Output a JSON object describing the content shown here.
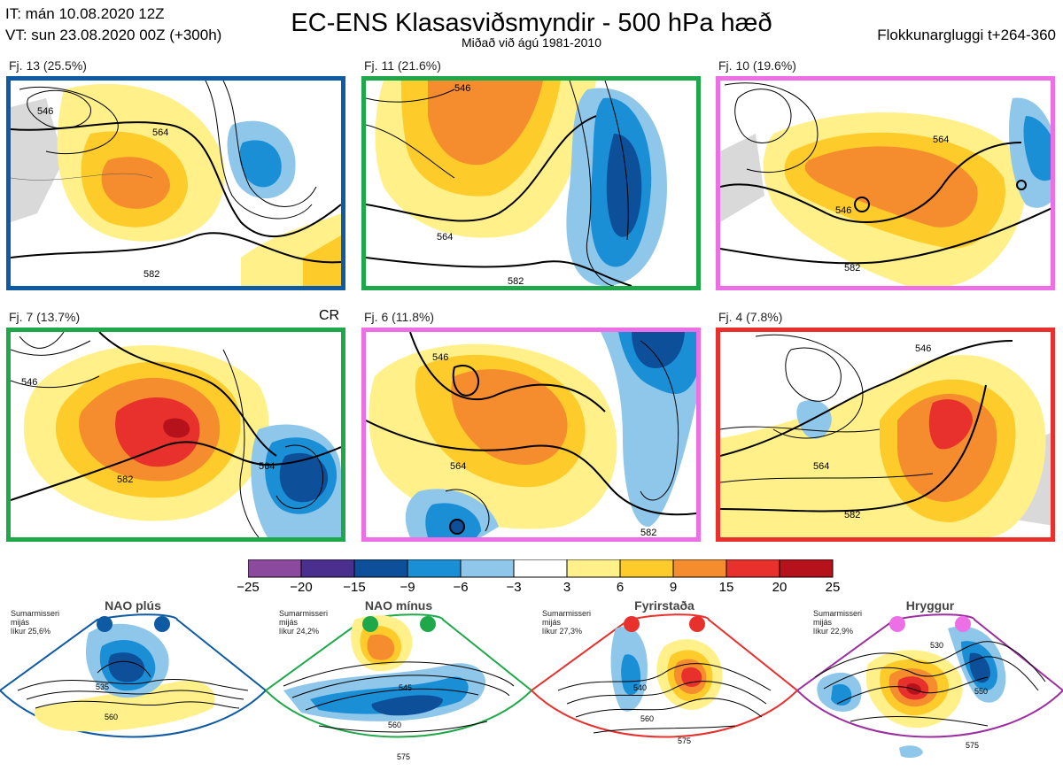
{
  "header": {
    "it": "IT: mán 10.08.2020 12Z",
    "vt": "VT: sun 23.08.2020 00Z  (+300h)",
    "title": "EC-ENS Klasasviðsmyndir - 500 hPa hæð",
    "subtitle": "Miðað við ágú 1981-2010",
    "window": "Flokkunargluggi t+264-360"
  },
  "panels": [
    {
      "label": "Fj. 13 (25.5%)",
      "color": "#0e5aa3",
      "c1": "546",
      "c2": "564",
      "c3": "582"
    },
    {
      "label": "Fj. 11 (21.6%)",
      "color": "#1fa84a",
      "c1": "546",
      "c2": "564",
      "c3": "582"
    },
    {
      "label": "Fj. 10 (19.6%)",
      "color": "#ec6fe6",
      "c1": "546",
      "c2": "564",
      "c3": "582"
    },
    {
      "label": "Fj. 7 (13.7%)",
      "color": "#1fa84a",
      "c1": "546",
      "c2": "564",
      "c3": "582"
    },
    {
      "label": "Fj. 6 (11.8%)",
      "color": "#ec6fe6",
      "c1": "546",
      "c2": "564",
      "c3": "582"
    },
    {
      "label": "Fj. 4 (7.8%)",
      "color": "#e8302c",
      "c1": "546",
      "c2": "564",
      "c3": "582"
    }
  ],
  "cr_label": "CR",
  "colorbar": {
    "labels": [
      "−25",
      "−20",
      "−15",
      "−9",
      "−6",
      "−3",
      "3",
      "6",
      "9",
      "15",
      "20",
      "25"
    ],
    "colors": [
      "#8b4a9e",
      "#4b2f8f",
      "#0e4f9a",
      "#1a8fd6",
      "#8fc7ea",
      "#ffffff",
      "#fff08a",
      "#fdcc2a",
      "#f58c2e",
      "#e8302c",
      "#b5121b"
    ]
  },
  "regimes": [
    {
      "name": "NAO plús",
      "info": [
        "Sumarmisseri",
        "mijás",
        "líkur 25,6%"
      ],
      "color": "#0e5aa3",
      "c1": "535",
      "c2": "560"
    },
    {
      "name": "NAO mínus",
      "info": [
        "Sumarmisseri",
        "mijás",
        "líkur 24,2%"
      ],
      "color": "#1fa84a",
      "c1": "545",
      "c2": "560",
      "c3": "575"
    },
    {
      "name": "Fyrirstaða",
      "info": [
        "Sumarmisseri",
        "mijás",
        "líkur 27,3%"
      ],
      "color": "#e8302c",
      "c1": "540",
      "c2": "560",
      "c3": "575"
    },
    {
      "name": "Hryggur",
      "info": [
        "Sumarmisseri",
        "mijás",
        "líkur 22,9%"
      ],
      "color": "#9c2fa0",
      "dot": "#ec6fe6",
      "c1": "530",
      "c2": "550",
      "c3": "575"
    }
  ]
}
